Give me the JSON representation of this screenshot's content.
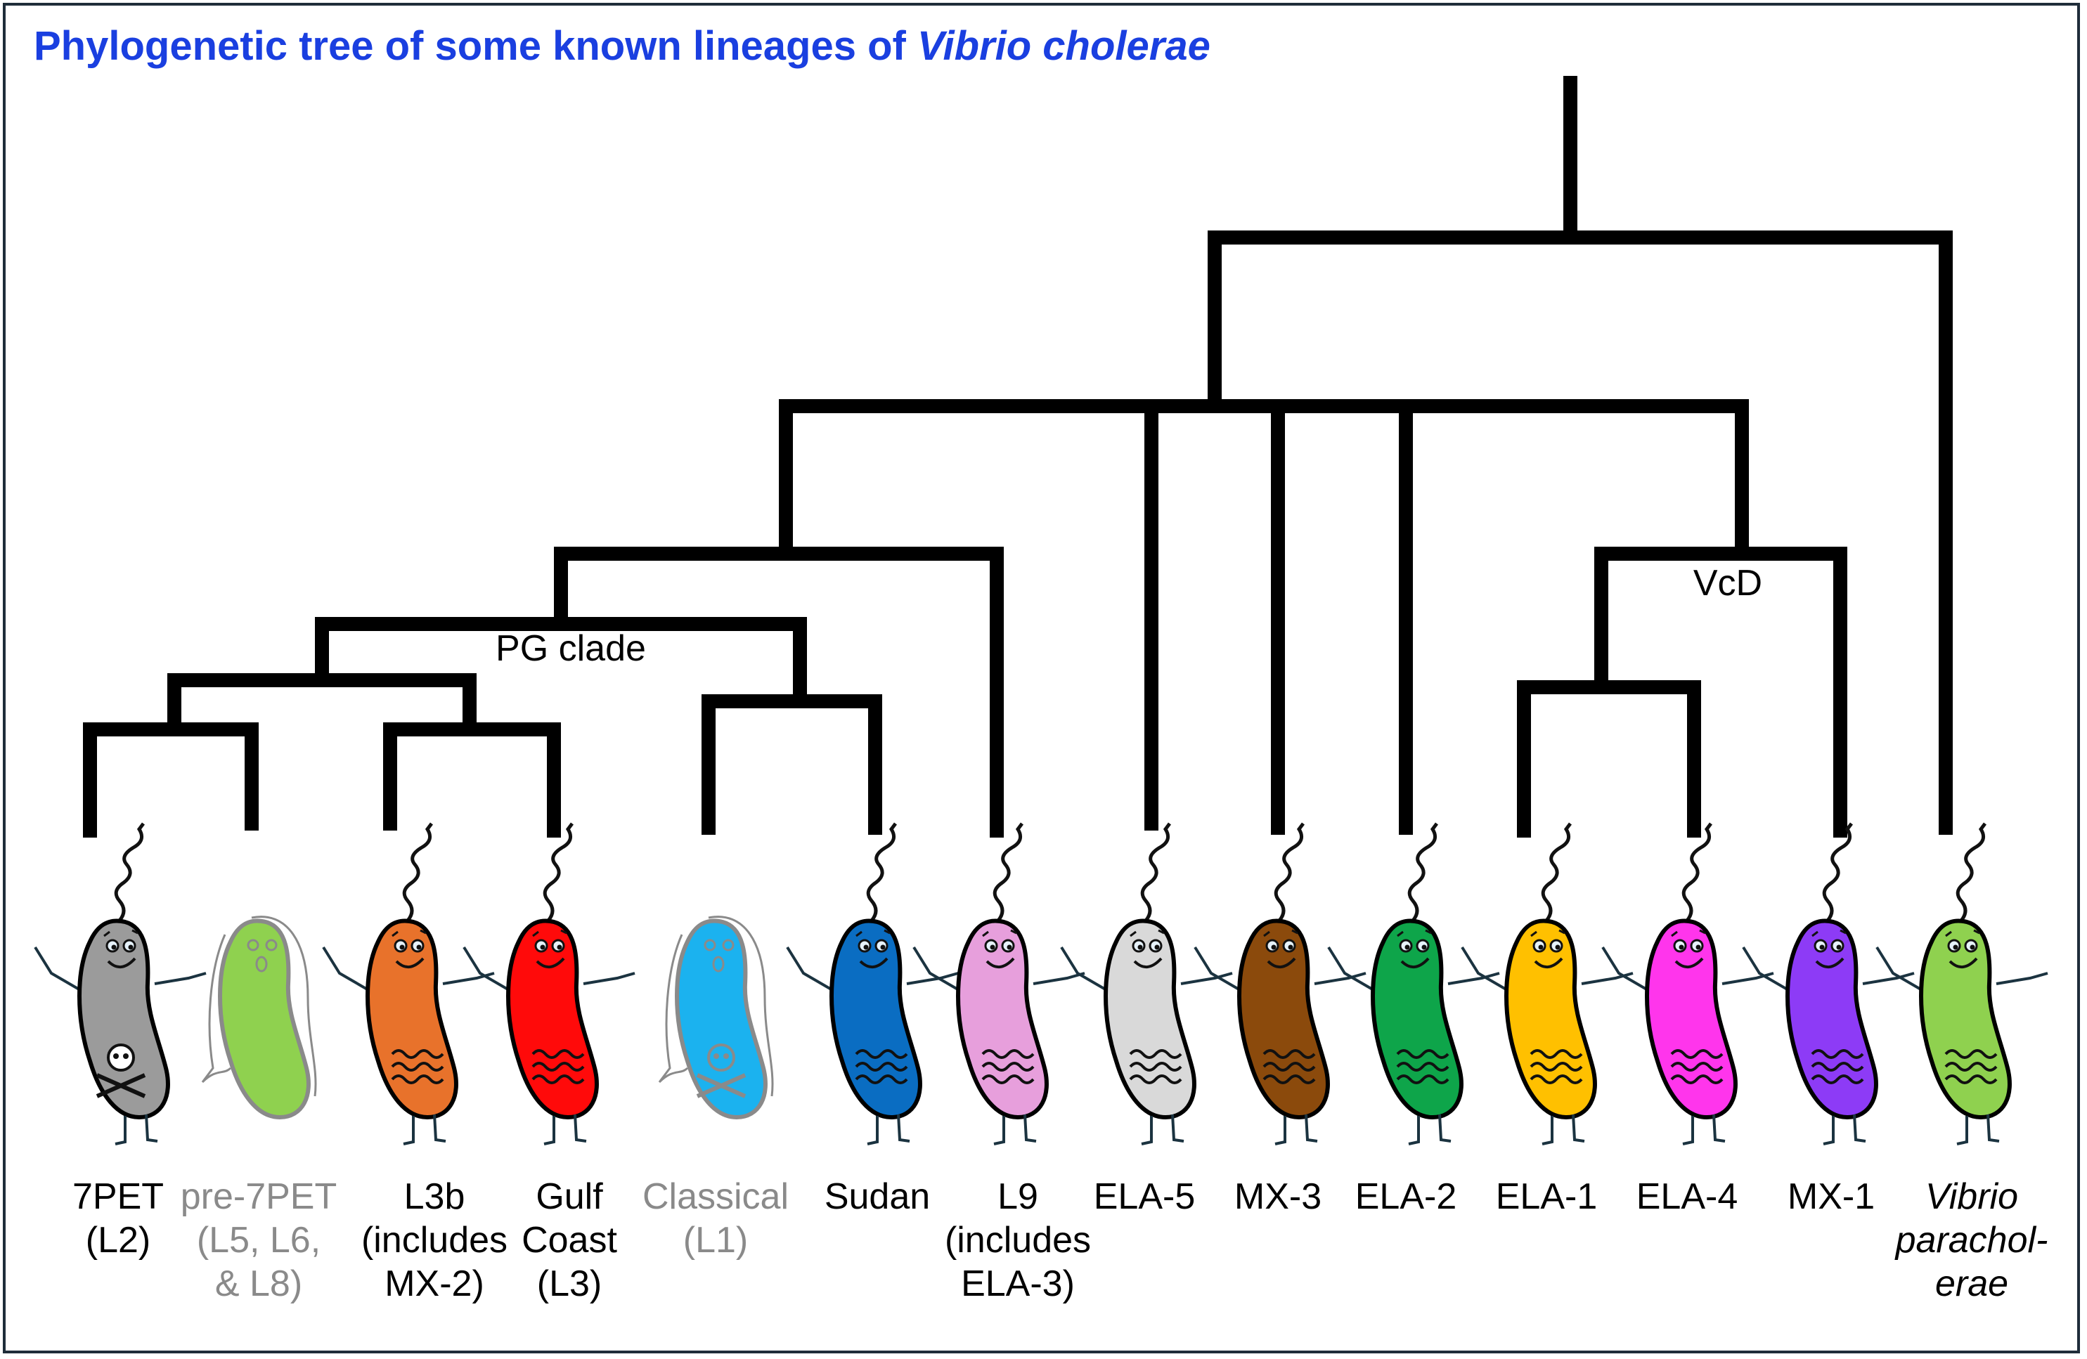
{
  "title": {
    "main": "Phylogenetic tree of some known lineages of ",
    "italic": "Vibrio cholerae"
  },
  "clade_labels": {
    "pg": "PG clade",
    "vcd": "VcD"
  },
  "colors": {
    "title": "#1a3fe0",
    "tree": "#000000",
    "extinct_text": "#8a8a8a",
    "frame": "#1f2d3a"
  },
  "lineages": [
    {
      "id": "7pet",
      "lines": [
        "7PET",
        "(L2)"
      ],
      "color": "#9b9b9b",
      "extinct": false,
      "toxic": true,
      "face": "happy"
    },
    {
      "id": "pre7pet",
      "lines": [
        "pre-7PET",
        "(L5, L6,",
        "& L8)"
      ],
      "color": "#8fd14f",
      "extinct": true,
      "toxic": false,
      "face": "ghost"
    },
    {
      "id": "l3b",
      "lines": [
        "L3b",
        "(includes",
        "MX-2)"
      ],
      "color": "#e8722b",
      "extinct": false,
      "toxic": false,
      "face": "happy"
    },
    {
      "id": "gulf",
      "lines": [
        "Gulf",
        "Coast",
        "(L3)"
      ],
      "color": "#ff0a0a",
      "extinct": false,
      "toxic": false,
      "face": "happy"
    },
    {
      "id": "classical",
      "lines": [
        "Classical",
        "(L1)"
      ],
      "color": "#1bb2ef",
      "extinct": true,
      "toxic": true,
      "face": "ghost"
    },
    {
      "id": "sudan",
      "lines": [
        "Sudan"
      ],
      "color": "#0a6dc2",
      "extinct": false,
      "toxic": false,
      "face": "happy"
    },
    {
      "id": "l9",
      "lines": [
        "L9",
        "(includes",
        "ELA-3)"
      ],
      "color": "#e79fdc",
      "extinct": false,
      "toxic": false,
      "face": "happy"
    },
    {
      "id": "ela5",
      "lines": [
        "ELA-5"
      ],
      "color": "#d9d9d9",
      "extinct": false,
      "toxic": false,
      "face": "happy"
    },
    {
      "id": "mx3",
      "lines": [
        "MX-3"
      ],
      "color": "#8b4a0c",
      "extinct": false,
      "toxic": false,
      "face": "happy"
    },
    {
      "id": "ela2",
      "lines": [
        "ELA-2"
      ],
      "color": "#0ea54a",
      "extinct": false,
      "toxic": false,
      "face": "happy"
    },
    {
      "id": "ela1",
      "lines": [
        "ELA-1"
      ],
      "color": "#ffc000",
      "extinct": false,
      "toxic": false,
      "face": "happy"
    },
    {
      "id": "ela4",
      "lines": [
        "ELA-4"
      ],
      "color": "#ff35ec",
      "extinct": false,
      "toxic": false,
      "face": "happy"
    },
    {
      "id": "mx1",
      "lines": [
        "MX-1"
      ],
      "color": "#8d3bf6",
      "extinct": false,
      "toxic": false,
      "face": "happy"
    },
    {
      "id": "vpara",
      "lines": [
        "Vibrio",
        "parachol-",
        "erae"
      ],
      "color": "#8fd14f",
      "extinct": false,
      "toxic": false,
      "face": "wink",
      "italic": true
    }
  ]
}
